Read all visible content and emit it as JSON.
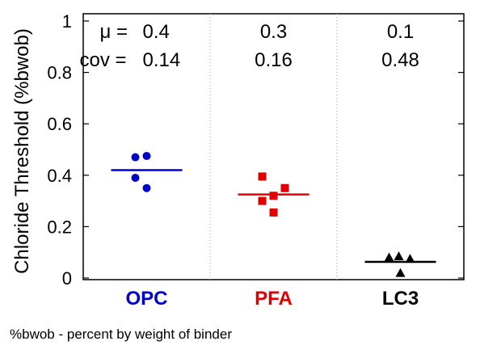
{
  "chart_data": {
    "type": "scatter",
    "ylabel": "Chloride Threshold (%bwob)",
    "ylim": [
      0,
      1
    ],
    "yticks": [
      "0",
      "0.2",
      "0.4",
      "0.6",
      "0.8",
      "1"
    ],
    "grid": "vertical dotted separators between groups",
    "mu_label": "μ",
    "cov_label": "cov",
    "categories": [
      {
        "name": "OPC",
        "color": "#0000cc",
        "marker": "circle",
        "points": [
          0.47,
          0.475,
          0.39,
          0.35
        ],
        "mean": 0.42,
        "mu_text": "0.4",
        "cov_text": "0.14"
      },
      {
        "name": "PFA",
        "color": "#e00000",
        "marker": "square",
        "points": [
          0.395,
          0.35,
          0.32,
          0.3,
          0.255
        ],
        "mean": 0.325,
        "mu_text": "0.3",
        "cov_text": "0.16"
      },
      {
        "name": "LC3",
        "color": "#000000",
        "marker": "triangle",
        "points": [
          0.085,
          0.075,
          0.08,
          0.02
        ],
        "mean": 0.063,
        "mu_text": "0.1",
        "cov_text": "0.48"
      }
    ]
  },
  "footnote": "%bwob - percent by weight of binder"
}
